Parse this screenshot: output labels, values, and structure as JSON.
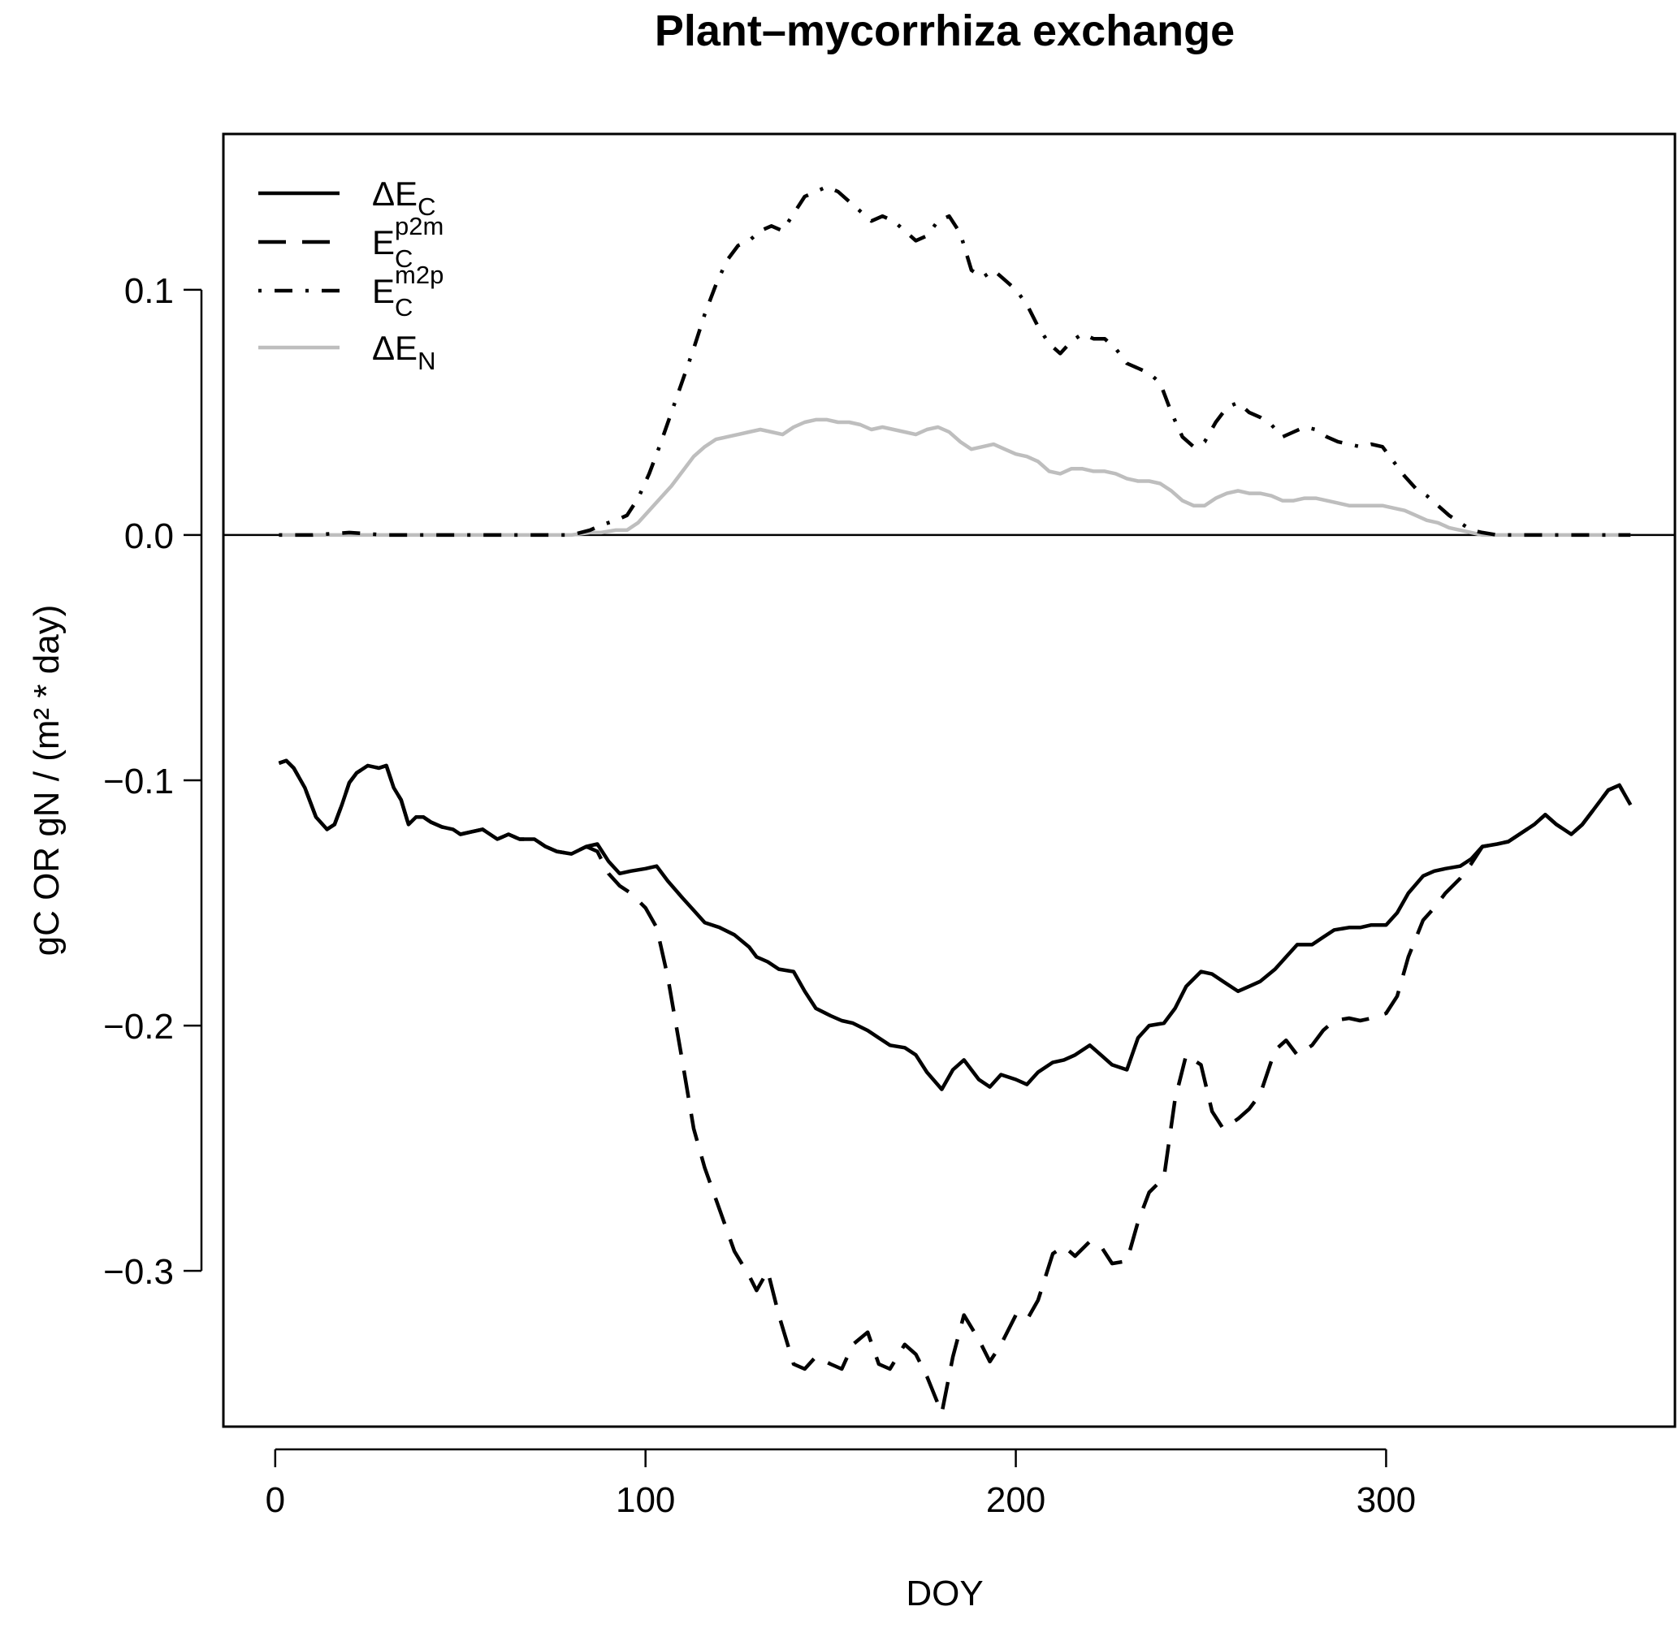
{
  "chart_data": {
    "type": "line",
    "title": "Plant–mycorrhiza exchange",
    "xlabel": "DOY",
    "ylabel": "gC OR gN / (m² * day)",
    "xlim": [
      -14,
      378
    ],
    "ylim": [
      -0.3635,
      0.1635
    ],
    "x_ticks": [
      0,
      100,
      200,
      300
    ],
    "x_tick_labels": [
      "0",
      "100",
      "200",
      "300"
    ],
    "y_ticks": [
      -0.3,
      -0.2,
      -0.1,
      0.0,
      0.1
    ],
    "y_tick_labels": [
      "−0.3",
      "−0.2",
      "−0.1",
      "0.0",
      "0.1"
    ],
    "zero_line": 0.0,
    "grid": false,
    "legend": {
      "position": "top-left",
      "entries": [
        {
          "base": "ΔE",
          "sub": "C",
          "sup": "",
          "style": "solid",
          "color": "#000000"
        },
        {
          "base": "E",
          "sub": "C",
          "sup": "p2m",
          "style": "dashed",
          "color": "#000000"
        },
        {
          "base": "E",
          "sub": "C",
          "sup": "m2p",
          "style": "dotdash",
          "color": "#000000"
        },
        {
          "base": "ΔE",
          "sub": "N",
          "sup": "",
          "style": "solid",
          "color": "#bebebe"
        }
      ]
    },
    "series": [
      {
        "name": "ΔE_C",
        "style": "solid",
        "color": "#000000",
        "x": [
          1,
          3,
          5,
          8,
          11,
          14,
          16,
          18,
          20,
          22,
          25,
          28,
          30,
          32,
          34,
          36,
          38,
          40,
          42,
          45,
          48,
          50,
          53,
          56,
          60,
          63,
          66,
          70,
          73,
          76,
          80,
          84,
          87,
          90,
          93,
          96,
          100,
          103,
          106,
          110,
          113,
          116,
          120,
          124,
          128,
          130,
          133,
          136,
          140,
          143,
          146,
          150,
          153,
          156,
          160,
          163,
          166,
          170,
          173,
          176,
          180,
          183,
          186,
          190,
          193,
          196,
          200,
          203,
          206,
          210,
          213,
          216,
          220,
          223,
          226,
          230,
          233,
          236,
          240,
          243,
          246,
          250,
          253,
          256,
          260,
          263,
          266,
          270,
          273,
          276,
          280,
          283,
          286,
          290,
          293,
          296,
          300,
          303,
          306,
          310,
          313,
          316,
          320,
          323,
          326,
          330,
          333,
          336,
          340,
          343,
          346,
          350,
          353,
          356,
          360,
          363,
          366
        ],
        "y": [
          -0.093,
          -0.092,
          -0.095,
          -0.103,
          -0.115,
          -0.12,
          -0.118,
          -0.11,
          -0.101,
          -0.097,
          -0.094,
          -0.095,
          -0.094,
          -0.103,
          -0.108,
          -0.118,
          -0.115,
          -0.115,
          -0.117,
          -0.119,
          -0.12,
          -0.122,
          -0.121,
          -0.12,
          -0.124,
          -0.122,
          -0.124,
          -0.124,
          -0.127,
          -0.129,
          -0.13,
          -0.127,
          -0.126,
          -0.133,
          -0.138,
          -0.137,
          -0.136,
          -0.135,
          -0.141,
          -0.148,
          -0.153,
          -0.158,
          -0.16,
          -0.163,
          -0.168,
          -0.172,
          -0.174,
          -0.177,
          -0.178,
          -0.186,
          -0.193,
          -0.196,
          -0.198,
          -0.199,
          -0.202,
          -0.205,
          -0.208,
          -0.209,
          -0.212,
          -0.219,
          -0.226,
          -0.218,
          -0.214,
          -0.222,
          -0.225,
          -0.22,
          -0.222,
          -0.224,
          -0.219,
          -0.215,
          -0.214,
          -0.212,
          -0.208,
          -0.212,
          -0.216,
          -0.218,
          -0.205,
          -0.2,
          -0.199,
          -0.193,
          -0.184,
          -0.178,
          -0.179,
          -0.182,
          -0.186,
          -0.184,
          -0.182,
          -0.177,
          -0.172,
          -0.167,
          -0.167,
          -0.164,
          -0.161,
          -0.16,
          -0.16,
          -0.159,
          -0.159,
          -0.154,
          -0.146,
          -0.139,
          -0.137,
          -0.136,
          -0.135,
          -0.132,
          -0.127,
          -0.126,
          -0.125,
          -0.122,
          -0.118,
          -0.114,
          -0.118,
          -0.122,
          -0.118,
          -0.112,
          -0.104,
          -0.102,
          -0.11
        ]
      },
      {
        "name": "E_C^p2m",
        "style": "dashed",
        "color": "#000000",
        "x": [
          1,
          3,
          5,
          8,
          11,
          14,
          16,
          18,
          20,
          22,
          25,
          28,
          30,
          32,
          34,
          36,
          38,
          40,
          42,
          45,
          48,
          50,
          53,
          56,
          60,
          63,
          66,
          70,
          73,
          76,
          80,
          84,
          87,
          90,
          93,
          96,
          100,
          103,
          106,
          110,
          113,
          116,
          120,
          124,
          128,
          130,
          133,
          136,
          140,
          143,
          146,
          150,
          153,
          156,
          160,
          163,
          166,
          170,
          173,
          176,
          180,
          183,
          186,
          190,
          193,
          196,
          200,
          203,
          206,
          210,
          213,
          216,
          220,
          223,
          226,
          230,
          233,
          236,
          240,
          243,
          246,
          250,
          253,
          256,
          260,
          263,
          266,
          270,
          273,
          276,
          280,
          283,
          286,
          290,
          293,
          296,
          300,
          303,
          306,
          310,
          313,
          316,
          320,
          323,
          326,
          330,
          333,
          336,
          340,
          343,
          346,
          350,
          353,
          356,
          360,
          363,
          366
        ],
        "y": [
          -0.093,
          -0.092,
          -0.095,
          -0.103,
          -0.115,
          -0.12,
          -0.118,
          -0.11,
          -0.101,
          -0.097,
          -0.094,
          -0.095,
          -0.094,
          -0.103,
          -0.108,
          -0.118,
          -0.115,
          -0.115,
          -0.117,
          -0.119,
          -0.12,
          -0.122,
          -0.121,
          -0.12,
          -0.124,
          -0.122,
          -0.124,
          -0.124,
          -0.127,
          -0.129,
          -0.13,
          -0.127,
          -0.129,
          -0.138,
          -0.143,
          -0.146,
          -0.152,
          -0.16,
          -0.18,
          -0.215,
          -0.242,
          -0.258,
          -0.275,
          -0.292,
          -0.302,
          -0.308,
          -0.3,
          -0.318,
          -0.338,
          -0.34,
          -0.335,
          -0.338,
          -0.34,
          -0.33,
          -0.325,
          -0.338,
          -0.34,
          -0.33,
          -0.334,
          -0.343,
          -0.358,
          -0.335,
          -0.318,
          -0.328,
          -0.337,
          -0.33,
          -0.318,
          -0.32,
          -0.312,
          -0.293,
          -0.29,
          -0.294,
          -0.288,
          -0.29,
          -0.297,
          -0.296,
          -0.28,
          -0.268,
          -0.262,
          -0.23,
          -0.212,
          -0.216,
          -0.235,
          -0.242,
          -0.238,
          -0.234,
          -0.228,
          -0.21,
          -0.206,
          -0.212,
          -0.208,
          -0.202,
          -0.198,
          -0.197,
          -0.198,
          -0.197,
          -0.195,
          -0.188,
          -0.172,
          -0.157,
          -0.152,
          -0.146,
          -0.14,
          -0.134,
          -0.127,
          -0.126,
          -0.125,
          -0.122,
          -0.118,
          -0.114,
          -0.118,
          -0.122,
          -0.118,
          -0.112,
          -0.104,
          -0.102,
          -0.11
        ]
      },
      {
        "name": "E_C^m2p",
        "style": "dotdash",
        "color": "#000000",
        "x": [
          1,
          10,
          20,
          30,
          40,
          50,
          60,
          70,
          80,
          85,
          88,
          92,
          95,
          98,
          101,
          104,
          107,
          110,
          113,
          116,
          119,
          122,
          125,
          128,
          131,
          134,
          137,
          140,
          143,
          146,
          149,
          152,
          155,
          158,
          161,
          164,
          167,
          170,
          173,
          176,
          179,
          182,
          185,
          188,
          191,
          194,
          197,
          200,
          203,
          206,
          209,
          212,
          215,
          218,
          221,
          224,
          227,
          230,
          233,
          236,
          239,
          242,
          245,
          248,
          251,
          254,
          257,
          260,
          263,
          266,
          269,
          272,
          275,
          278,
          281,
          284,
          287,
          290,
          293,
          296,
          299,
          302,
          305,
          308,
          311,
          314,
          317,
          320,
          323,
          326,
          330,
          340,
          350,
          360,
          366
        ],
        "y": [
          0.0,
          0.0,
          0.001,
          0.0,
          0.0,
          0.0,
          0.0,
          0.0,
          0.0,
          0.002,
          0.004,
          0.006,
          0.008,
          0.015,
          0.025,
          0.037,
          0.05,
          0.063,
          0.076,
          0.09,
          0.102,
          0.112,
          0.118,
          0.12,
          0.124,
          0.126,
          0.124,
          0.131,
          0.138,
          0.14,
          0.142,
          0.14,
          0.136,
          0.132,
          0.128,
          0.13,
          0.128,
          0.124,
          0.12,
          0.122,
          0.128,
          0.13,
          0.123,
          0.108,
          0.105,
          0.108,
          0.104,
          0.1,
          0.094,
          0.085,
          0.078,
          0.074,
          0.079,
          0.082,
          0.08,
          0.08,
          0.076,
          0.07,
          0.068,
          0.066,
          0.062,
          0.05,
          0.04,
          0.036,
          0.038,
          0.046,
          0.052,
          0.054,
          0.05,
          0.048,
          0.045,
          0.04,
          0.042,
          0.044,
          0.043,
          0.04,
          0.038,
          0.037,
          0.036,
          0.037,
          0.036,
          0.03,
          0.024,
          0.019,
          0.016,
          0.012,
          0.008,
          0.005,
          0.002,
          0.001,
          0.0,
          0.0,
          0.0,
          0.0,
          0.0
        ]
      },
      {
        "name": "ΔE_N",
        "style": "solid",
        "color": "#bebebe",
        "x": [
          1,
          10,
          20,
          30,
          40,
          50,
          60,
          70,
          80,
          85,
          88,
          92,
          95,
          98,
          101,
          104,
          107,
          110,
          113,
          116,
          119,
          122,
          125,
          128,
          131,
          134,
          137,
          140,
          143,
          146,
          149,
          152,
          155,
          158,
          161,
          164,
          167,
          170,
          173,
          176,
          179,
          182,
          185,
          188,
          191,
          194,
          197,
          200,
          203,
          206,
          209,
          212,
          215,
          218,
          221,
          224,
          227,
          230,
          233,
          236,
          239,
          242,
          245,
          248,
          251,
          254,
          257,
          260,
          263,
          266,
          269,
          272,
          275,
          278,
          281,
          284,
          287,
          290,
          293,
          296,
          299,
          302,
          305,
          308,
          311,
          314,
          317,
          320,
          323,
          326,
          330,
          340,
          350,
          360,
          366
        ],
        "y": [
          0.0,
          0.0,
          0.0,
          0.0,
          0.0,
          0.0,
          0.0,
          0.0,
          0.0,
          0.001,
          0.001,
          0.002,
          0.002,
          0.005,
          0.01,
          0.015,
          0.02,
          0.026,
          0.032,
          0.036,
          0.039,
          0.04,
          0.041,
          0.042,
          0.043,
          0.042,
          0.041,
          0.044,
          0.046,
          0.047,
          0.047,
          0.046,
          0.046,
          0.045,
          0.043,
          0.044,
          0.043,
          0.042,
          0.041,
          0.043,
          0.044,
          0.042,
          0.038,
          0.035,
          0.036,
          0.037,
          0.035,
          0.033,
          0.032,
          0.03,
          0.026,
          0.025,
          0.027,
          0.027,
          0.026,
          0.026,
          0.025,
          0.023,
          0.022,
          0.022,
          0.021,
          0.018,
          0.014,
          0.012,
          0.012,
          0.015,
          0.017,
          0.018,
          0.017,
          0.017,
          0.016,
          0.014,
          0.014,
          0.015,
          0.015,
          0.014,
          0.013,
          0.012,
          0.012,
          0.012,
          0.012,
          0.011,
          0.01,
          0.008,
          0.006,
          0.005,
          0.003,
          0.002,
          0.001,
          0.0,
          0.0,
          0.0,
          0.0,
          0.0,
          0.0
        ]
      }
    ]
  }
}
